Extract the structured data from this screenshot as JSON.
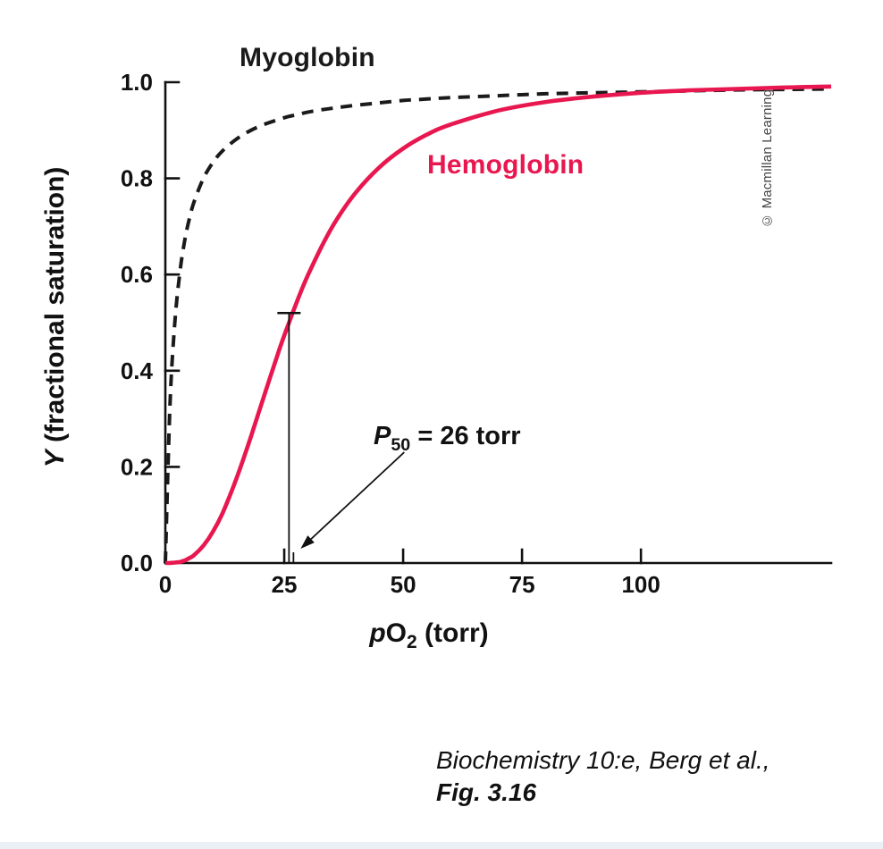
{
  "labels": {
    "myoglobin": "Myoglobin",
    "hemoglobin": "Hemoglobin"
  },
  "credit": "© Macmillan Learning",
  "caption": {
    "line1": "Biochemistry 10:e, Berg et al.,",
    "line2": "Fig. 3.16"
  },
  "chart_data": {
    "type": "line",
    "title": "",
    "xlabel_parts": {
      "italic": "p",
      "main": "O",
      "sub": "2",
      "rest": " (torr)"
    },
    "ylabel_parts": {
      "italic": "Y",
      "rest": " (fractional saturation)"
    },
    "xlabel_plain": "pO2 (torr)",
    "ylabel_plain": "Y (fractional saturation)",
    "xlim": [
      0,
      140
    ],
    "ylim": [
      0,
      1.0
    ],
    "grid": false,
    "x_ticks": [
      0,
      25,
      50,
      75,
      100
    ],
    "x_tick_labels": [
      "0",
      "25",
      "50",
      "75",
      "100"
    ],
    "y_ticks": [
      0.0,
      0.2,
      0.4,
      0.6,
      0.8,
      1.0
    ],
    "y_tick_labels": [
      "0.0",
      "0.2",
      "0.4",
      "0.6",
      "0.8",
      "1.0"
    ],
    "x": [
      0,
      1,
      2,
      3,
      4,
      5,
      6,
      8,
      10,
      12,
      15,
      18,
      21,
      24,
      26,
      28,
      30,
      33,
      36,
      40,
      45,
      50,
      55,
      60,
      70,
      80,
      90,
      100,
      110,
      120,
      130,
      140
    ],
    "series": [
      {
        "name": "Myoglobin",
        "color": "#1a1a1a",
        "style": "dashed",
        "values": [
          0,
          0.333,
          0.5,
          0.6,
          0.667,
          0.714,
          0.75,
          0.8,
          0.833,
          0.857,
          0.882,
          0.9,
          0.913,
          0.923,
          0.929,
          0.933,
          0.938,
          0.943,
          0.947,
          0.952,
          0.957,
          0.962,
          0.965,
          0.968,
          0.972,
          0.976,
          0.978,
          0.98,
          0.982,
          0.984,
          0.985,
          0.986
        ]
      },
      {
        "name": "Hemoglobin",
        "color": "#e8174f",
        "style": "solid",
        "values": [
          0,
          0.0001,
          0.001,
          0.002,
          0.005,
          0.01,
          0.016,
          0.036,
          0.065,
          0.103,
          0.177,
          0.263,
          0.355,
          0.445,
          0.5,
          0.552,
          0.599,
          0.661,
          0.714,
          0.77,
          0.823,
          0.862,
          0.891,
          0.912,
          0.941,
          0.959,
          0.97,
          0.978,
          0.983,
          0.986,
          0.989,
          0.991
        ]
      }
    ],
    "annotation": {
      "p": "P",
      "sub": "50",
      "rest": " = 26 torr",
      "x": 26,
      "y": 0.5
    },
    "p50_marker": {
      "x": 26,
      "y_top": 0.52
    }
  }
}
